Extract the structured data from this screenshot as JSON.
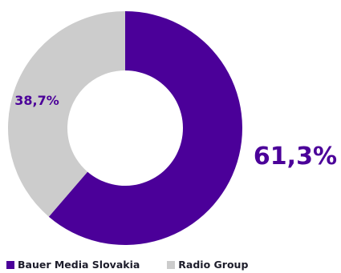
{
  "chart_data": {
    "type": "pie",
    "variant": "donut",
    "slices": [
      {
        "label": "Bauer Media Slovakia",
        "value": 61.3,
        "display": "61,3%",
        "color": "#4b0099"
      },
      {
        "label": "Radio Group",
        "value": 38.7,
        "display": "38,7%",
        "color": "#cccccc"
      }
    ],
    "legend_position": "bottom-left"
  },
  "colors": {
    "label_text": "#4b0099",
    "legend_text": "#1d1d2b",
    "background": "#ffffff"
  }
}
